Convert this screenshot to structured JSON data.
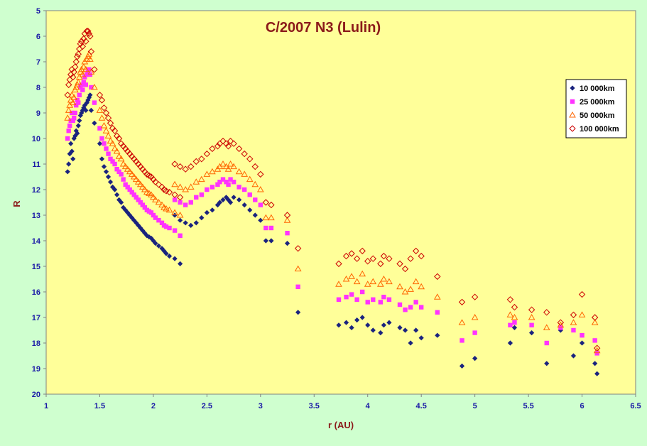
{
  "chart_data": {
    "type": "scatter",
    "title": "C/2007 N3 (Lulin)",
    "xlabel": "r (AU)",
    "ylabel": "R",
    "xlim": [
      1,
      6.5
    ],
    "ylim": [
      20,
      5
    ],
    "y_inverted": true,
    "x_ticks": [
      "1",
      "1.5",
      "2",
      "2.5",
      "3",
      "3.5",
      "4",
      "4.5",
      "5",
      "5.5",
      "6",
      "6.5"
    ],
    "y_ticks": [
      "5",
      "6",
      "7",
      "8",
      "9",
      "10",
      "11",
      "12",
      "13",
      "14",
      "15",
      "16",
      "17",
      "18",
      "19",
      "20"
    ],
    "grid": false,
    "legend_position": "top-right",
    "colors": {
      "plot_background": "#ffff99",
      "outer_background": "#cfffcf",
      "title": "#8b1a1a",
      "axis_label": "#8b1a1a",
      "tick_label": "#1a1aa6"
    },
    "series": [
      {
        "name": "10 000km",
        "marker": "diamond",
        "color": "#1a237e",
        "x": [
          1.2,
          1.21,
          1.22,
          1.23,
          1.24,
          1.25,
          1.26,
          1.27,
          1.28,
          1.29,
          1.3,
          1.31,
          1.32,
          1.33,
          1.34,
          1.35,
          1.36,
          1.37,
          1.38,
          1.39,
          1.4,
          1.41,
          1.42,
          1.45,
          1.5,
          1.52,
          1.54,
          1.56,
          1.58,
          1.6,
          1.62,
          1.64,
          1.66,
          1.68,
          1.7,
          1.72,
          1.74,
          1.76,
          1.78,
          1.8,
          1.82,
          1.84,
          1.86,
          1.88,
          1.9,
          1.92,
          1.94,
          1.96,
          1.98,
          2.0,
          2.02,
          2.05,
          2.08,
          2.1,
          2.12,
          2.15,
          2.2,
          2.25,
          2.2,
          2.25,
          2.3,
          2.35,
          2.4,
          2.45,
          2.5,
          2.55,
          2.6,
          2.62,
          2.65,
          2.68,
          2.7,
          2.72,
          2.75,
          2.8,
          2.85,
          2.9,
          2.95,
          3.0,
          3.05,
          3.1,
          3.25,
          3.35,
          3.73,
          3.8,
          3.85,
          3.9,
          3.95,
          4.0,
          4.05,
          4.12,
          4.15,
          4.2,
          4.3,
          4.35,
          4.4,
          4.45,
          4.5,
          4.65,
          4.88,
          5.0,
          5.33,
          5.37,
          5.53,
          5.67,
          5.8,
          5.92,
          6.0,
          6.12,
          6.14
        ],
        "y": [
          11.3,
          11.0,
          10.6,
          10.2,
          10.5,
          10.8,
          10.0,
          9.9,
          9.7,
          9.8,
          9.5,
          9.3,
          9.1,
          9.0,
          8.9,
          8.8,
          8.7,
          8.9,
          8.6,
          8.5,
          8.4,
          8.3,
          8.9,
          9.4,
          10.2,
          10.8,
          11.1,
          11.3,
          11.5,
          11.7,
          11.9,
          12.0,
          12.2,
          12.4,
          12.5,
          12.7,
          12.8,
          12.9,
          13.0,
          13.1,
          13.2,
          13.3,
          13.4,
          13.5,
          13.6,
          13.7,
          13.8,
          13.85,
          13.9,
          14.0,
          14.1,
          14.2,
          14.3,
          14.4,
          14.5,
          14.6,
          14.7,
          14.9,
          13.0,
          13.2,
          13.3,
          13.4,
          13.3,
          13.1,
          12.9,
          12.8,
          12.6,
          12.5,
          12.4,
          12.3,
          12.4,
          12.5,
          12.3,
          12.4,
          12.6,
          12.8,
          13.0,
          13.2,
          14.0,
          14.0,
          14.1,
          16.8,
          17.3,
          17.2,
          17.4,
          17.1,
          17.0,
          17.3,
          17.5,
          17.6,
          17.3,
          17.2,
          17.4,
          17.5,
          18.0,
          17.5,
          17.8,
          17.7,
          18.9,
          18.6,
          18.0,
          17.4,
          17.6,
          18.8,
          17.5,
          18.5,
          18.0,
          18.8,
          19.2
        ]
      },
      {
        "name": "25 000km",
        "marker": "square",
        "color": "#ff33ff",
        "x": [
          1.2,
          1.21,
          1.22,
          1.23,
          1.24,
          1.25,
          1.26,
          1.27,
          1.28,
          1.29,
          1.3,
          1.31,
          1.32,
          1.33,
          1.34,
          1.35,
          1.36,
          1.37,
          1.38,
          1.39,
          1.4,
          1.41,
          1.42,
          1.45,
          1.5,
          1.52,
          1.54,
          1.56,
          1.58,
          1.6,
          1.62,
          1.64,
          1.66,
          1.68,
          1.7,
          1.72,
          1.74,
          1.76,
          1.78,
          1.8,
          1.82,
          1.84,
          1.86,
          1.88,
          1.9,
          1.92,
          1.94,
          1.96,
          1.98,
          2.0,
          2.02,
          2.05,
          2.08,
          2.1,
          2.12,
          2.15,
          2.2,
          2.25,
          2.2,
          2.25,
          2.3,
          2.35,
          2.4,
          2.45,
          2.5,
          2.55,
          2.6,
          2.62,
          2.65,
          2.68,
          2.7,
          2.72,
          2.75,
          2.8,
          2.85,
          2.9,
          2.95,
          3.0,
          3.05,
          3.1,
          3.25,
          3.35,
          3.73,
          3.8,
          3.85,
          3.9,
          3.95,
          4.0,
          4.05,
          4.12,
          4.15,
          4.2,
          4.3,
          4.35,
          4.4,
          4.45,
          4.5,
          4.65,
          4.88,
          5.0,
          5.33,
          5.37,
          5.53,
          5.67,
          5.8,
          5.92,
          6.0,
          6.12,
          6.14
        ],
        "y": [
          10.0,
          9.7,
          9.5,
          9.3,
          9.0,
          9.3,
          9.2,
          9.0,
          8.7,
          8.5,
          8.6,
          8.3,
          8.0,
          7.9,
          8.1,
          7.8,
          7.6,
          7.9,
          7.5,
          7.4,
          7.3,
          7.5,
          8.0,
          8.6,
          9.6,
          10.0,
          10.2,
          10.4,
          10.6,
          10.8,
          10.9,
          11.0,
          11.2,
          11.3,
          11.4,
          11.6,
          11.8,
          11.9,
          12.0,
          12.1,
          12.2,
          12.3,
          12.4,
          12.5,
          12.6,
          12.7,
          12.8,
          12.85,
          12.9,
          13.0,
          13.1,
          13.2,
          13.3,
          13.4,
          13.45,
          13.5,
          13.6,
          13.8,
          12.4,
          12.5,
          12.6,
          12.5,
          12.3,
          12.2,
          12.0,
          11.9,
          11.8,
          11.7,
          11.6,
          11.7,
          11.8,
          11.6,
          11.7,
          11.9,
          12.0,
          12.2,
          12.4,
          12.6,
          13.5,
          13.5,
          13.7,
          15.8,
          16.3,
          16.2,
          16.1,
          16.3,
          16.0,
          16.4,
          16.3,
          16.4,
          16.2,
          16.3,
          16.5,
          16.7,
          16.6,
          16.4,
          16.6,
          16.8,
          17.9,
          17.6,
          17.3,
          17.2,
          17.3,
          18.0,
          17.4,
          17.5,
          17.7,
          17.9,
          18.4
        ]
      },
      {
        "name": "50 000km",
        "marker": "triangle",
        "color": "#ff6600",
        "x": [
          1.2,
          1.21,
          1.22,
          1.23,
          1.24,
          1.25,
          1.26,
          1.27,
          1.28,
          1.29,
          1.3,
          1.31,
          1.32,
          1.33,
          1.34,
          1.35,
          1.36,
          1.37,
          1.38,
          1.39,
          1.4,
          1.41,
          1.42,
          1.45,
          1.5,
          1.52,
          1.54,
          1.56,
          1.58,
          1.6,
          1.62,
          1.64,
          1.66,
          1.68,
          1.7,
          1.72,
          1.74,
          1.76,
          1.78,
          1.8,
          1.82,
          1.84,
          1.86,
          1.88,
          1.9,
          1.92,
          1.94,
          1.96,
          1.98,
          2.0,
          2.02,
          2.05,
          2.08,
          2.1,
          2.12,
          2.15,
          2.2,
          2.25,
          2.2,
          2.25,
          2.3,
          2.35,
          2.4,
          2.45,
          2.5,
          2.55,
          2.6,
          2.62,
          2.65,
          2.68,
          2.7,
          2.72,
          2.75,
          2.8,
          2.85,
          2.9,
          2.95,
          3.0,
          3.05,
          3.1,
          3.25,
          3.35,
          3.73,
          3.8,
          3.85,
          3.9,
          3.95,
          4.0,
          4.05,
          4.12,
          4.15,
          4.2,
          4.3,
          4.35,
          4.4,
          4.45,
          4.5,
          4.65,
          4.88,
          5.0,
          5.33,
          5.37,
          5.53,
          5.67,
          5.8,
          5.92,
          6.0,
          6.12,
          6.14
        ],
        "y": [
          9.2,
          8.9,
          8.7,
          8.5,
          8.3,
          8.6,
          8.4,
          8.1,
          8.0,
          7.9,
          7.8,
          7.6,
          7.4,
          7.3,
          7.5,
          7.2,
          7.0,
          7.3,
          6.9,
          6.8,
          6.7,
          6.9,
          7.4,
          8.0,
          8.9,
          9.2,
          9.5,
          9.7,
          9.9,
          10.1,
          10.2,
          10.4,
          10.5,
          10.7,
          10.8,
          11.0,
          11.1,
          11.2,
          11.3,
          11.4,
          11.5,
          11.6,
          11.7,
          11.8,
          11.9,
          12.0,
          12.1,
          12.15,
          12.2,
          12.3,
          12.4,
          12.5,
          12.6,
          12.7,
          12.75,
          12.8,
          12.9,
          13.0,
          11.8,
          11.9,
          12.0,
          11.9,
          11.7,
          11.6,
          11.4,
          11.3,
          11.2,
          11.1,
          11.0,
          11.1,
          11.2,
          11.0,
          11.1,
          11.3,
          11.4,
          11.6,
          11.8,
          12.0,
          13.1,
          13.1,
          13.2,
          15.1,
          15.7,
          15.5,
          15.4,
          15.6,
          15.3,
          15.7,
          15.6,
          15.7,
          15.5,
          15.6,
          15.8,
          16.0,
          15.9,
          15.6,
          15.8,
          16.2,
          17.2,
          17.0,
          16.9,
          17.0,
          17.0,
          17.4,
          17.3,
          17.2,
          16.9,
          17.2,
          18.3
        ]
      },
      {
        "name": "100 000km",
        "marker": "diamond-open",
        "color": "#cc0000",
        "x": [
          1.2,
          1.21,
          1.22,
          1.23,
          1.24,
          1.25,
          1.26,
          1.27,
          1.28,
          1.29,
          1.3,
          1.31,
          1.32,
          1.33,
          1.34,
          1.35,
          1.36,
          1.37,
          1.38,
          1.39,
          1.4,
          1.41,
          1.42,
          1.45,
          1.5,
          1.52,
          1.54,
          1.56,
          1.58,
          1.6,
          1.62,
          1.64,
          1.66,
          1.68,
          1.7,
          1.72,
          1.74,
          1.76,
          1.78,
          1.8,
          1.82,
          1.84,
          1.86,
          1.88,
          1.9,
          1.92,
          1.94,
          1.96,
          1.98,
          2.0,
          2.02,
          2.05,
          2.08,
          2.1,
          2.12,
          2.15,
          2.2,
          2.25,
          2.2,
          2.25,
          2.3,
          2.35,
          2.4,
          2.45,
          2.5,
          2.55,
          2.6,
          2.62,
          2.65,
          2.68,
          2.7,
          2.72,
          2.75,
          2.8,
          2.85,
          2.9,
          2.95,
          3.0,
          3.05,
          3.1,
          3.25,
          3.35,
          3.73,
          3.8,
          3.85,
          3.9,
          3.95,
          4.0,
          4.05,
          4.12,
          4.15,
          4.2,
          4.3,
          4.35,
          4.4,
          4.45,
          4.5,
          4.65,
          4.88,
          5.0,
          5.33,
          5.37,
          5.53,
          5.67,
          5.8,
          5.92,
          6.0,
          6.12,
          6.14
        ],
        "y": [
          8.3,
          7.9,
          7.7,
          7.5,
          7.3,
          7.6,
          7.4,
          7.2,
          7.0,
          6.8,
          6.7,
          6.5,
          6.3,
          6.2,
          6.4,
          6.1,
          5.9,
          6.2,
          5.8,
          5.8,
          5.9,
          6.0,
          6.6,
          7.3,
          8.3,
          8.5,
          8.8,
          9.0,
          9.2,
          9.4,
          9.6,
          9.7,
          9.9,
          10.0,
          10.2,
          10.3,
          10.4,
          10.5,
          10.6,
          10.7,
          10.8,
          10.9,
          11.0,
          11.1,
          11.2,
          11.3,
          11.4,
          11.45,
          11.5,
          11.6,
          11.7,
          11.8,
          11.9,
          12.0,
          12.05,
          12.1,
          12.2,
          12.3,
          11.0,
          11.1,
          11.2,
          11.1,
          10.9,
          10.8,
          10.6,
          10.4,
          10.3,
          10.2,
          10.1,
          10.2,
          10.3,
          10.1,
          10.2,
          10.4,
          10.6,
          10.8,
          11.1,
          11.4,
          12.5,
          12.6,
          13.0,
          14.3,
          14.9,
          14.6,
          14.5,
          14.7,
          14.4,
          14.8,
          14.7,
          14.9,
          14.6,
          14.7,
          14.9,
          15.1,
          14.7,
          14.4,
          14.6,
          15.4,
          16.4,
          16.2,
          16.3,
          16.6,
          16.7,
          16.8,
          17.2,
          16.9,
          16.1,
          17.0,
          18.2
        ]
      }
    ]
  }
}
